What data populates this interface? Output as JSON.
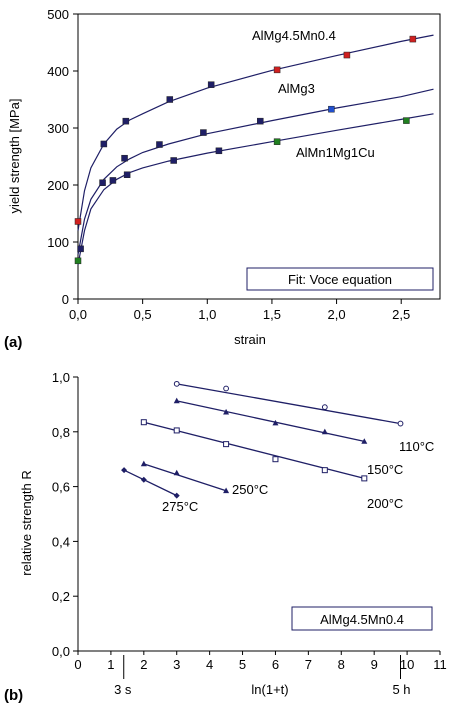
{
  "panel_labels": [
    "(a)",
    "(b)"
  ],
  "chart_data": [
    {
      "type": "scatter",
      "panel": "(a)",
      "xlabel": "strain",
      "ylabel": "yield strength [MPa]",
      "xlim": [
        0,
        2.8
      ],
      "ylim": [
        0,
        500
      ],
      "x_ticks": [
        "0,0",
        "0,5",
        "1,0",
        "1,5",
        "2,0",
        "2,5"
      ],
      "x_tick_values": [
        0,
        0.5,
        1.0,
        1.5,
        2.0,
        2.5
      ],
      "y_ticks": [
        "0",
        "100",
        "200",
        "300",
        "400",
        "500"
      ],
      "y_tick_values": [
        0,
        100,
        200,
        300,
        400,
        500
      ],
      "legend_box": "Fit: Voce equation",
      "grid": false,
      "series": [
        {
          "name": "AlMg4.5Mn0.4",
          "marker_color": "#1f1f66",
          "special_color": "#d02020",
          "points": [
            [
              0.0,
              136
            ],
            [
              0.2,
              272
            ],
            [
              0.37,
              312
            ],
            [
              0.71,
              350
            ],
            [
              1.03,
              376
            ],
            [
              1.54,
              402
            ],
            [
              2.08,
              428
            ],
            [
              2.59,
              456
            ]
          ],
          "fit": [
            [
              0.0,
              120
            ],
            [
              0.05,
              190
            ],
            [
              0.1,
              230
            ],
            [
              0.2,
              272
            ],
            [
              0.3,
              298
            ],
            [
              0.4,
              314
            ],
            [
              0.5,
              325
            ],
            [
              0.7,
              346
            ],
            [
              1.0,
              370
            ],
            [
              1.5,
              401
            ],
            [
              2.0,
              427
            ],
            [
              2.5,
              452
            ],
            [
              2.75,
              463
            ]
          ]
        },
        {
          "name": "AlMg3",
          "marker_color": "#1f1f66",
          "special_color": "#2050d0",
          "points": [
            [
              0.02,
              88
            ],
            [
              0.19,
              204
            ],
            [
              0.36,
              247
            ],
            [
              0.63,
              271
            ],
            [
              0.97,
              292
            ],
            [
              1.41,
              312
            ],
            [
              1.96,
              333
            ]
          ],
          "fit": [
            [
              0.0,
              78
            ],
            [
              0.05,
              140
            ],
            [
              0.1,
              175
            ],
            [
              0.2,
              210
            ],
            [
              0.3,
              232
            ],
            [
              0.4,
              246
            ],
            [
              0.5,
              257
            ],
            [
              0.7,
              272
            ],
            [
              1.0,
              290
            ],
            [
              1.5,
              313
            ],
            [
              2.0,
              335
            ],
            [
              2.5,
              355
            ],
            [
              2.75,
              368
            ]
          ]
        },
        {
          "name": "AlMn1Mg1Cu",
          "marker_color": "#1f1f66",
          "special_color": "#208020",
          "points": [
            [
              0.0,
              67
            ],
            [
              0.27,
              208
            ],
            [
              0.38,
              218
            ],
            [
              0.74,
              243
            ],
            [
              1.09,
              260
            ],
            [
              1.54,
              276
            ],
            [
              2.54,
              313
            ]
          ],
          "fit": [
            [
              0.0,
              60
            ],
            [
              0.05,
              120
            ],
            [
              0.1,
              158
            ],
            [
              0.2,
              192
            ],
            [
              0.3,
              210
            ],
            [
              0.4,
              222
            ],
            [
              0.5,
              230
            ],
            [
              0.7,
              242
            ],
            [
              1.0,
              256
            ],
            [
              1.5,
              276
            ],
            [
              2.0,
              296
            ],
            [
              2.5,
              315
            ],
            [
              2.75,
              325
            ]
          ]
        }
      ]
    },
    {
      "type": "line",
      "panel": "(b)",
      "xlabel": "ln(1+t)",
      "ylabel": "relative strength  R",
      "xlim": [
        0,
        11
      ],
      "ylim": [
        0,
        1.0
      ],
      "x_ticks": [
        "0",
        "1",
        "2",
        "3",
        "4",
        "5",
        "6",
        "7",
        "8",
        "9",
        "10",
        "11"
      ],
      "x_tick_values": [
        0,
        1,
        2,
        3,
        4,
        5,
        6,
        7,
        8,
        9,
        10,
        11
      ],
      "y_ticks": [
        "0,0",
        "0,2",
        "0,4",
        "0,6",
        "0,8",
        "1,0"
      ],
      "y_tick_values": [
        0,
        0.2,
        0.4,
        0.6,
        0.8,
        1.0
      ],
      "secondary_labels": [
        {
          "text": "3 s",
          "x": 1.39
        },
        {
          "text": "5 h",
          "x": 9.8
        }
      ],
      "legend_box": "AlMg4.5Mn0.4",
      "grid": false,
      "series": [
        {
          "name": "110°C",
          "marker": "circle-open",
          "points": [
            [
              3.0,
              0.975
            ],
            [
              4.5,
              0.958
            ],
            [
              7.5,
              0.89
            ],
            [
              9.8,
              0.83
            ]
          ]
        },
        {
          "name": "150°C",
          "marker": "triangle",
          "points": [
            [
              3.0,
              0.913
            ],
            [
              4.5,
              0.872
            ],
            [
              6.0,
              0.832
            ],
            [
              7.5,
              0.8
            ],
            [
              8.7,
              0.765
            ]
          ]
        },
        {
          "name": "200°C",
          "marker": "square-open",
          "points": [
            [
              2.0,
              0.835
            ],
            [
              3.0,
              0.805
            ],
            [
              4.5,
              0.755
            ],
            [
              6.0,
              0.7
            ],
            [
              7.5,
              0.66
            ],
            [
              8.7,
              0.63
            ]
          ]
        },
        {
          "name": "250°C",
          "marker": "triangle",
          "points": [
            [
              2.0,
              0.683
            ],
            [
              3.0,
              0.65
            ],
            [
              4.5,
              0.585
            ]
          ]
        },
        {
          "name": "275°C",
          "marker": "diamond",
          "points": [
            [
              1.4,
              0.66
            ],
            [
              2.0,
              0.625
            ],
            [
              3.0,
              0.567
            ]
          ]
        }
      ]
    }
  ]
}
